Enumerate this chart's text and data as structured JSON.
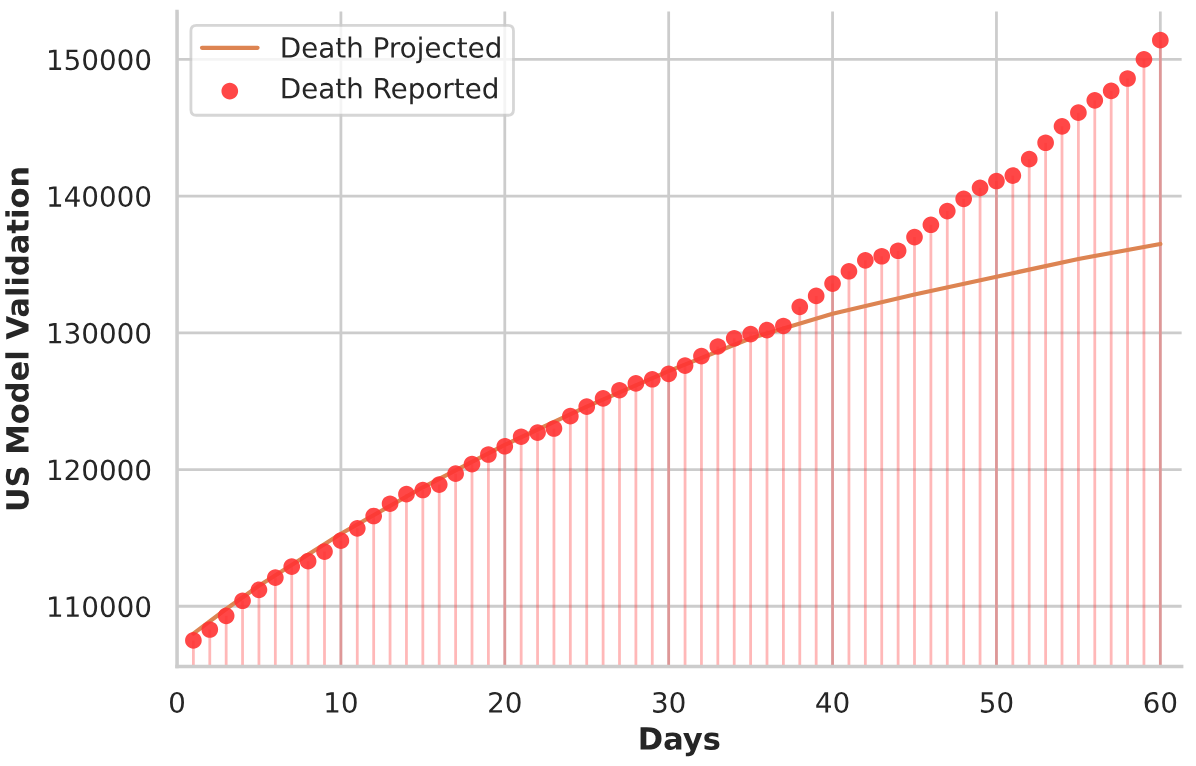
{
  "chart_data": {
    "type": "line",
    "xlabel": "Days",
    "ylabel": "US Model Validation",
    "xlim": [
      0,
      61.3
    ],
    "xticks": [
      0,
      10,
      20,
      30,
      40,
      50,
      60
    ],
    "ylim": [
      105600,
      153500
    ],
    "yticks": [
      110000,
      120000,
      130000,
      140000,
      150000
    ],
    "grid": true,
    "legend": "top left",
    "series": [
      {
        "name": "Death Projected",
        "color": "#dd8452",
        "marker": "none",
        "x": [
          1,
          3,
          5,
          10,
          15,
          20,
          25,
          30,
          35,
          40,
          45,
          50,
          55,
          60
        ],
        "values": [
          108000,
          109800,
          111500,
          115300,
          118700,
          121800,
          124600,
          127200,
          129600,
          131400,
          132800,
          134100,
          135400,
          136500
        ]
      },
      {
        "name": "Death Reported",
        "type": "lollipop",
        "color": "#ff3333",
        "marker": "circle",
        "x": [
          1,
          2,
          3,
          4,
          5,
          6,
          7,
          8,
          9,
          10,
          11,
          12,
          13,
          14,
          15,
          16,
          17,
          18,
          19,
          20,
          21,
          22,
          23,
          24,
          25,
          26,
          27,
          28,
          29,
          30,
          31,
          32,
          33,
          34,
          35,
          36,
          37,
          38,
          39,
          40,
          41,
          42,
          43,
          44,
          45,
          46,
          47,
          48,
          49,
          50,
          51,
          52,
          53,
          54,
          55,
          56,
          57,
          58,
          59,
          60
        ],
        "values": [
          107500,
          108300,
          109300,
          110400,
          111200,
          112100,
          112900,
          113300,
          114000,
          114800,
          115700,
          116600,
          117500,
          118200,
          118500,
          118900,
          119700,
          120400,
          121100,
          121700,
          122400,
          122700,
          123000,
          123900,
          124600,
          125200,
          125800,
          126300,
          126600,
          127000,
          127600,
          128300,
          129000,
          129600,
          129900,
          130200,
          130500,
          131900,
          132700,
          133600,
          134500,
          135300,
          135600,
          136000,
          137000,
          137900,
          138900,
          139800,
          140600,
          141100,
          141500,
          142700,
          143900,
          145100,
          146100,
          147000,
          147700,
          148600,
          150000,
          151400
        ]
      }
    ]
  }
}
